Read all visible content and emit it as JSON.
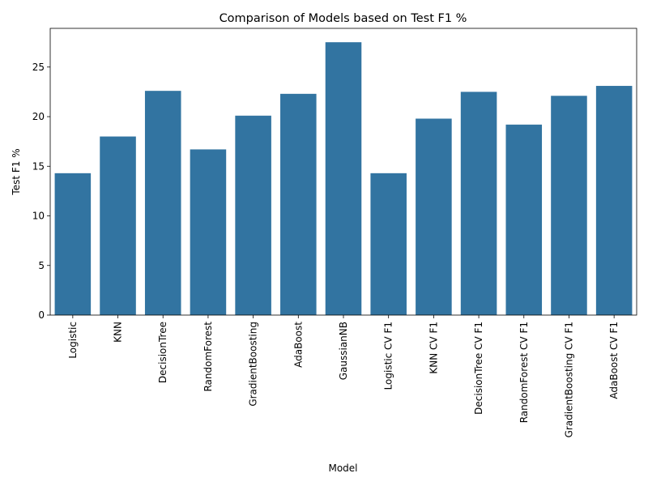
{
  "chart_data": {
    "type": "bar",
    "title": "Comparison of Models based on Test F1 %",
    "xlabel": "Model",
    "ylabel": "Test F1 %",
    "categories": [
      "Logistic",
      "KNN",
      "DecisionTree",
      "RandomForest",
      "GradientBoosting",
      "AdaBoost",
      "GaussianNB",
      "Logistic CV F1",
      "KNN CV F1",
      "DecisionTree CV F1",
      "RandomForest CV F1",
      "GradientBoosting CV F1",
      "AdaBoost CV F1"
    ],
    "values": [
      14.3,
      18.0,
      22.6,
      16.7,
      20.1,
      22.3,
      27.5,
      14.3,
      19.8,
      22.5,
      19.2,
      22.1,
      23.1
    ],
    "yticks": [
      0,
      5,
      10,
      15,
      20,
      25
    ],
    "ylim": [
      0,
      28.9
    ],
    "bar_color": "#3274a1",
    "grid": false,
    "legend": "none"
  }
}
